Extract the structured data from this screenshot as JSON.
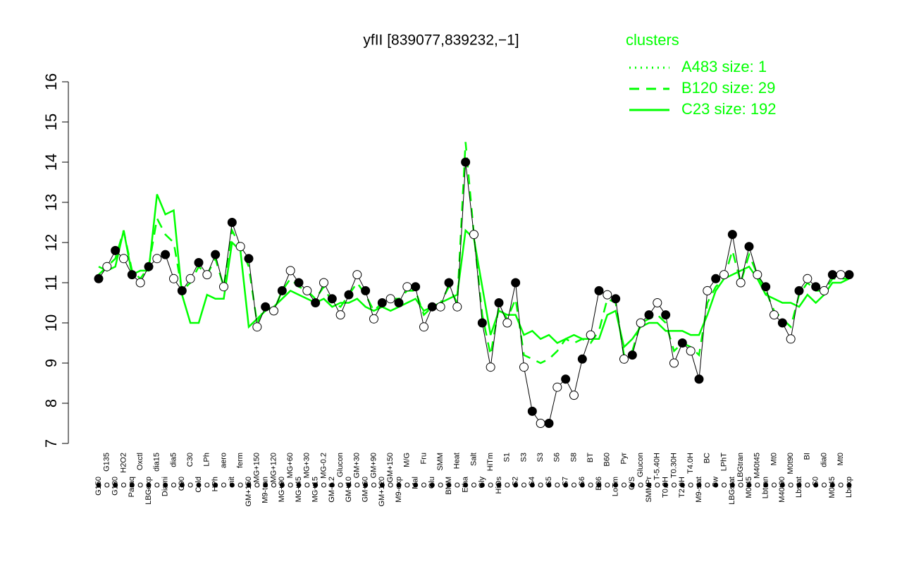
{
  "chart_data": {
    "type": "line",
    "title": "yfII [839077,839232,−1]",
    "legend_title": "clusters",
    "categories": [
      "G150",
      "G135",
      "G180",
      "H2O2",
      "Paraq",
      "Oxctl",
      "LBGexp",
      "dia15",
      "Diami",
      "dia5",
      "C90",
      "C30",
      "Cold",
      "LPh",
      "HPh",
      "aero",
      "nit",
      "ferm",
      "GM+150",
      "MG+150",
      "M9-tran",
      "MG+120",
      "MG+90",
      "MG+60",
      "MG+45",
      "MG+30",
      "MG+15",
      "MG-0.2",
      "GM-0.2",
      "Glucon",
      "GM+10",
      "GM+30",
      "GM+60",
      "GM+90",
      "GM+120",
      "GM+150",
      "M9-exp",
      "M/G",
      "Mal",
      "Fru",
      "Glu",
      "SMM",
      "BMM",
      "Heat",
      "Etha",
      "Salt",
      "Gly",
      "HiTm",
      "HiOs",
      "S1",
      "S2",
      "S3",
      "S4",
      "S3",
      "S5",
      "S6",
      "S7",
      "S8",
      "S6",
      "BT",
      "B36",
      "B60",
      "LoTm",
      "Pyr",
      "G/S",
      "Glucon",
      "SMMPr",
      "T-5.40H",
      "T0.0H",
      "T0.30H",
      "T2.0H",
      "T4.0H",
      "M9-stat",
      "BC",
      "Sw",
      "LPhT",
      "LBGstat",
      "LBGtran",
      "M0t45",
      "M40t45",
      "Lbtran",
      "Mt0",
      "M40t90",
      "M0t90",
      "Lbstat",
      "BI",
      "S0",
      "dia0",
      "M0t45",
      "Mt0",
      "Lbexp"
    ],
    "series": [
      {
        "name": "A483 size: 1",
        "color": "#00ff00",
        "dash": "dotted",
        "values": [
          11.1,
          11.4,
          11.8,
          11.6,
          11.2,
          11.0,
          11.4,
          11.6,
          11.7,
          11.1,
          10.8,
          11.1,
          11.5,
          11.2,
          11.7,
          10.9,
          12.5,
          11.9,
          11.6,
          9.9,
          10.4,
          10.3,
          10.8,
          11.3,
          11.0,
          10.8,
          10.5,
          11.0,
          10.6,
          10.2,
          10.7,
          11.2,
          10.8,
          10.1,
          10.5,
          10.6,
          10.5,
          10.9,
          10.9,
          9.9,
          10.4,
          10.4,
          11.0,
          10.4,
          14.0,
          12.2,
          10.0,
          8.9,
          10.5,
          10.0,
          11.0,
          8.9,
          7.8,
          7.5,
          7.5,
          8.4,
          8.6,
          8.2,
          9.1,
          9.7,
          10.8,
          10.7,
          10.6,
          9.1,
          9.2,
          10.0,
          10.2,
          10.5,
          10.2,
          9.0,
          9.5,
          9.3,
          8.6,
          10.8,
          11.1,
          11.2,
          12.2,
          11.0,
          11.9,
          11.2,
          10.9,
          10.2,
          10.0,
          9.6,
          10.8,
          11.1,
          10.9,
          10.8,
          11.2,
          11.2,
          11.2
        ]
      },
      {
        "name": "B120 size: 29",
        "color": "#00ff00",
        "dash": "dashed",
        "values": [
          11.2,
          11.4,
          11.6,
          12.3,
          11.3,
          11.1,
          11.4,
          12.6,
          12.2,
          12.0,
          10.8,
          11.0,
          11.4,
          11.2,
          11.6,
          10.9,
          12.3,
          11.9,
          11.4,
          10.0,
          10.4,
          10.3,
          10.8,
          11.1,
          10.9,
          10.8,
          10.6,
          10.9,
          10.5,
          10.4,
          10.7,
          11.0,
          10.7,
          10.3,
          10.5,
          10.6,
          10.6,
          10.8,
          10.8,
          10.2,
          10.4,
          10.5,
          10.9,
          10.5,
          14.5,
          12.2,
          10.2,
          9.2,
          10.4,
          10.1,
          10.6,
          9.2,
          9.1,
          9.0,
          9.1,
          9.3,
          9.6,
          9.5,
          9.6,
          9.5,
          9.8,
          10.6,
          10.5,
          9.2,
          9.3,
          10.0,
          10.1,
          10.2,
          10.0,
          9.3,
          9.5,
          9.4,
          9.2,
          10.5,
          10.9,
          11.1,
          11.8,
          11.0,
          11.7,
          11.2,
          10.8,
          10.3,
          10.1,
          9.9,
          10.7,
          11.0,
          10.8,
          10.8,
          11.1,
          11.1,
          11.1
        ]
      },
      {
        "name": "C23 size: 192",
        "color": "#00ff00",
        "dash": "solid",
        "values": [
          11.4,
          11.3,
          11.4,
          12.3,
          11.2,
          11.3,
          11.3,
          13.2,
          12.7,
          12.8,
          10.7,
          10.0,
          10.0,
          10.7,
          10.6,
          10.6,
          12.0,
          11.8,
          9.9,
          10.1,
          10.3,
          10.4,
          10.6,
          10.8,
          10.7,
          10.6,
          10.5,
          10.6,
          10.4,
          10.5,
          10.5,
          10.6,
          10.4,
          10.3,
          10.4,
          10.3,
          10.4,
          10.5,
          10.6,
          10.3,
          10.4,
          10.5,
          10.6,
          10.7,
          12.3,
          12.1,
          10.9,
          9.7,
          10.3,
          10.2,
          10.2,
          9.7,
          9.8,
          9.6,
          9.7,
          9.5,
          9.6,
          9.7,
          9.6,
          9.6,
          9.6,
          10.2,
          10.3,
          9.4,
          9.6,
          9.9,
          10.0,
          10.0,
          9.8,
          9.8,
          9.8,
          9.7,
          9.7,
          10.2,
          10.8,
          11.1,
          11.2,
          11.3,
          11.4,
          11.1,
          10.7,
          10.6,
          10.5,
          10.5,
          10.4,
          10.7,
          10.5,
          10.7,
          11.0,
          11.0,
          11.1
        ]
      }
    ],
    "ylim": [
      7,
      16
    ],
    "yticks": [
      7,
      8,
      9,
      10,
      11,
      12,
      13,
      14,
      15,
      16
    ]
  }
}
